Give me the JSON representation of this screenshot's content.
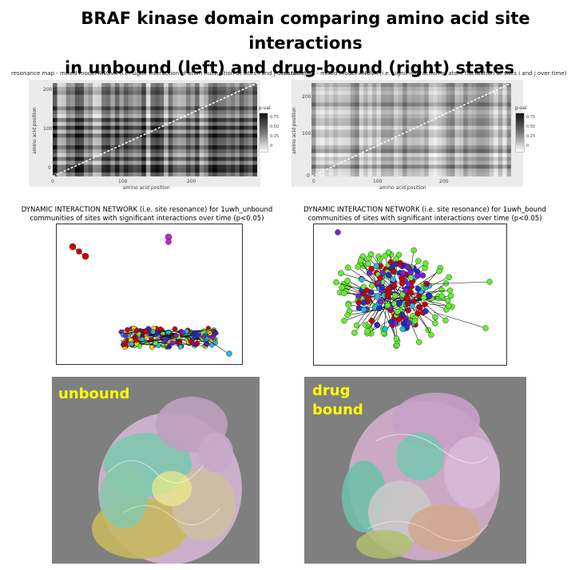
{
  "title": {
    "line1": "BRAF kinase domain comparing amino acid site interactions",
    "line2": "in unbound (left) and drug-bound (right) states"
  },
  "heatmaps": [
    {
      "title": "resonance map - mixed model ANOVA (i.e. signif interaction of atom fluctuation at sites i and j over time)",
      "xlabel": "amino acid position",
      "ylabel": "amino acid position",
      "xticks": [
        "0",
        "100",
        "200"
      ],
      "yticks": [
        "0",
        "100",
        "200"
      ],
      "legend_title": "p-val",
      "legend_values": [
        "0.75",
        "0.50",
        "0.25",
        "0"
      ]
    },
    {
      "title": "nance map - mixed model ANOVA (i.e. signif interaction of atom fluctuation at sites i and j over time)",
      "xlabel": "amino acid position",
      "ylabel": "amino acid position",
      "xticks": [
        "0",
        "100",
        "200"
      ],
      "yticks": [
        "0",
        "100",
        "200"
      ],
      "legend_title": "p-val",
      "legend_values": [
        "0.75",
        "0.50",
        "0.25",
        "0"
      ]
    }
  ],
  "networks": [
    {
      "title_line1": "DYNAMIC INTERACTION NETWORK (i.e. site resonance) for 1uwh_unbound",
      "title_line2": "communities of sites with significant interactions over time (p<0.05)"
    },
    {
      "title_line1": "DYNAMIC INTERACTION NETWORK (i.e. site resonance) for 1uwh_bound",
      "title_line2": "communities of sites with significant interactions over time (p<0.05)"
    }
  ],
  "structures": [
    {
      "label_line1": "unbound",
      "label_line2": ""
    },
    {
      "label_line1": "drug",
      "label_line2": "bound"
    }
  ],
  "colors": {
    "accent_label": "#ffff00",
    "structure_bg": "#7f7f7f",
    "community_red": "#cc0000",
    "community_green": "#66ee33",
    "community_blue": "#1f2fcc",
    "community_cyan": "#22bbdd",
    "community_purple": "#7a22cc",
    "community_magenta": "#cc22cc",
    "community_yellow": "#eecc00"
  }
}
